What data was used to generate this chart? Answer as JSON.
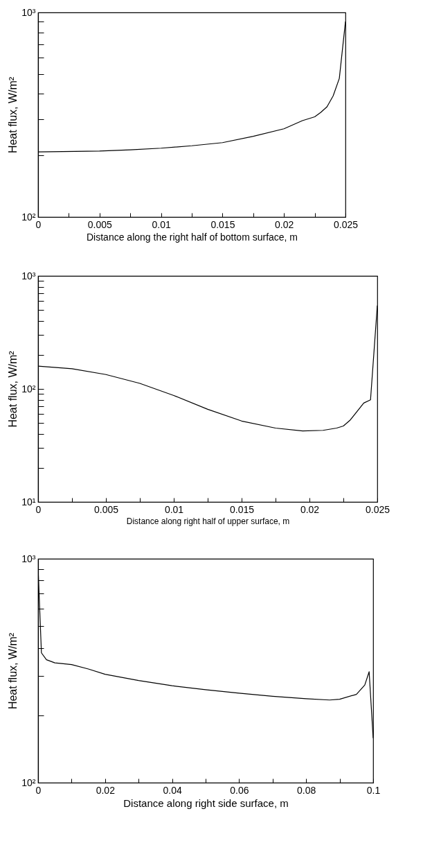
{
  "chart_data": [
    {
      "type": "line",
      "xlabel": "Distance along the right half of bottom surface, m",
      "ylabel": "Heat flux, W/m²",
      "log": true,
      "x": [
        0,
        0.005,
        0.0075,
        0.01,
        0.0125,
        0.015,
        0.0175,
        0.02,
        0.0215,
        0.0225,
        0.023,
        0.0235,
        0.024,
        0.0245,
        0.025
      ],
      "series": [
        {
          "color": "#000000",
          "values": [
            208,
            210,
            213,
            217,
            223,
            231,
            248,
            270,
            296,
            309,
            325,
            346,
            391,
            476,
            903
          ]
        }
      ],
      "xlim": [
        0,
        0.025
      ],
      "ylim": [
        100,
        1000
      ],
      "xticks": [
        0,
        {
          "value": 0.0025,
          "label": null
        },
        0.005,
        {
          "value": 0.0075,
          "label": null
        },
        0.01,
        {
          "value": 0.0125,
          "label": null
        },
        0.015,
        {
          "value": 0.0175,
          "label": null
        },
        0.02,
        {
          "value": 0.0225,
          "label": null
        },
        0.025
      ],
      "yticks": [
        {
          "value": 100,
          "label": "10²"
        },
        {
          "value": 200,
          "label": null
        },
        {
          "value": 300,
          "label": null
        },
        {
          "value": 400,
          "label": null
        },
        {
          "value": 500,
          "label": null
        },
        {
          "value": 600,
          "label": null
        },
        {
          "value": 700,
          "label": null
        },
        {
          "value": 800,
          "label": null
        },
        {
          "value": 900,
          "label": null
        },
        {
          "value": 1000,
          "label": "10³"
        }
      ]
    },
    {
      "type": "line",
      "xlabel": "Distance along right half of upper surface, m",
      "ylabel": "Heat flux, W/m²",
      "log": true,
      "x": [
        0,
        0.0025,
        0.005,
        0.0075,
        0.01,
        0.0125,
        0.015,
        0.0175,
        0.0195,
        0.021,
        0.022,
        0.0225,
        0.023,
        0.024,
        0.0245,
        0.025
      ],
      "series": [
        {
          "color": "#000000",
          "values": [
            159,
            151,
            134,
            112,
            87.5,
            66,
            52,
            45,
            42.5,
            43,
            45,
            47,
            53,
            75,
            80,
            547
          ]
        }
      ],
      "xlim": [
        0,
        0.025
      ],
      "ylim": [
        10,
        1000
      ],
      "xticks": [
        0,
        {
          "value": 0.0025,
          "label": null
        },
        0.005,
        {
          "value": 0.0075,
          "label": null
        },
        0.01,
        {
          "value": 0.0125,
          "label": null
        },
        0.015,
        {
          "value": 0.0175,
          "label": null
        },
        0.02,
        {
          "value": 0.0225,
          "label": null
        },
        0.025
      ],
      "yticks": [
        {
          "value": 10,
          "label": "10¹"
        },
        {
          "value": 20,
          "label": null
        },
        {
          "value": 30,
          "label": null
        },
        {
          "value": 40,
          "label": null
        },
        {
          "value": 50,
          "label": null
        },
        {
          "value": 60,
          "label": null
        },
        {
          "value": 70,
          "label": null
        },
        {
          "value": 80,
          "label": null
        },
        {
          "value": 90,
          "label": null
        },
        {
          "value": 100,
          "label": "10²"
        },
        {
          "value": 200,
          "label": null
        },
        {
          "value": 300,
          "label": null
        },
        {
          "value": 400,
          "label": null
        },
        {
          "value": 500,
          "label": null
        },
        {
          "value": 600,
          "label": null
        },
        {
          "value": 700,
          "label": null
        },
        {
          "value": 800,
          "label": null
        },
        {
          "value": 900,
          "label": null
        },
        {
          "value": 1000,
          "label": "10³"
        }
      ]
    },
    {
      "type": "line",
      "xlabel": "Distance along right side surface, m",
      "ylabel": "Heat flux, W/m²",
      "log": true,
      "x": [
        0,
        0.001,
        0.0025,
        0.005,
        0.01,
        0.015,
        0.02,
        0.03,
        0.04,
        0.05,
        0.06,
        0.07,
        0.08,
        0.087,
        0.09,
        0.095,
        0.0975,
        0.0988,
        0.1
      ],
      "series": [
        {
          "color": "#000000",
          "values": [
            914,
            380,
            354,
            343,
            337,
            322,
            305,
            286,
            271,
            260,
            251,
            243,
            237,
            234,
            236,
            248,
            273,
            313,
            158
          ]
        }
      ],
      "xlim": [
        0,
        0.1
      ],
      "ylim": [
        100,
        1000
      ],
      "xticks": [
        0,
        {
          "value": 0.01,
          "label": null
        },
        0.02,
        {
          "value": 0.03,
          "label": null
        },
        0.04,
        {
          "value": 0.05,
          "label": null
        },
        0.06,
        {
          "value": 0.07,
          "label": null
        },
        0.08,
        {
          "value": 0.09,
          "label": null
        },
        0.1
      ],
      "yticks": [
        {
          "value": 100,
          "label": "10²"
        },
        {
          "value": 200,
          "label": null
        },
        {
          "value": 300,
          "label": null
        },
        {
          "value": 400,
          "label": null
        },
        {
          "value": 500,
          "label": null
        },
        {
          "value": 600,
          "label": null
        },
        {
          "value": 700,
          "label": null
        },
        {
          "value": 800,
          "label": null
        },
        {
          "value": 900,
          "label": null
        },
        {
          "value": 1000,
          "label": "10³"
        }
      ]
    }
  ]
}
